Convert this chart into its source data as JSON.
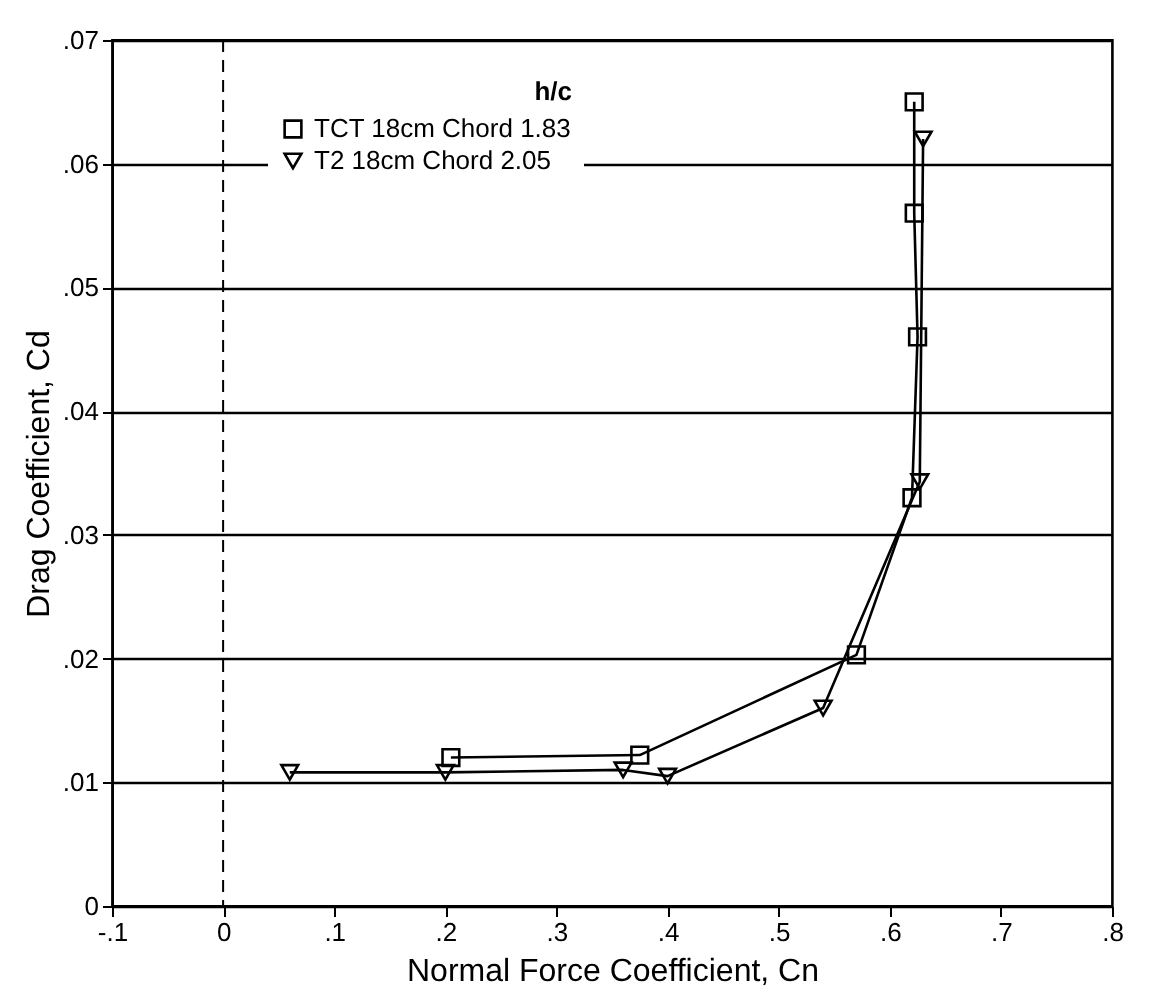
{
  "chart_data": {
    "type": "line",
    "xlabel": "Normal Force Coefficient, Cn",
    "ylabel": "Drag Coefficient, Cd",
    "legend_title": "h/c",
    "series": [
      {
        "name": "TCT 18cm Chord 1.83",
        "color": "#000000",
        "marker": "square",
        "x": [
          0.205,
          0.375,
          0.57,
          0.62,
          0.625,
          0.622,
          0.622
        ],
        "values": [
          0.012,
          0.0122,
          0.0203,
          0.033,
          0.046,
          0.056,
          0.065
        ]
      },
      {
        "name": "T2 18cm Chord 2.05",
        "color": "#000000",
        "marker": "triangle",
        "x": [
          0.06,
          0.2,
          0.36,
          0.4,
          0.54,
          0.627,
          0.63
        ],
        "values": [
          0.0108,
          0.0108,
          0.011,
          0.0105,
          0.016,
          0.0343,
          0.062
        ]
      }
    ],
    "xlim": [
      -0.1,
      0.8
    ],
    "xticks": [
      {
        "value": -0.1,
        "label": "-.1"
      },
      0,
      {
        "value": 0.1,
        "label": ".1"
      },
      {
        "value": 0.2,
        "label": ".2"
      },
      {
        "value": 0.3,
        "label": ".3"
      },
      {
        "value": 0.4,
        "label": ".4"
      },
      {
        "value": 0.5,
        "label": ".5"
      },
      {
        "value": 0.6,
        "label": ".6"
      },
      {
        "value": 0.7,
        "label": ".7"
      },
      {
        "value": 0.8,
        "label": ".8"
      }
    ],
    "ylim": [
      0,
      0.07
    ],
    "yticks": [
      0,
      {
        "value": 0.01,
        "label": ".01"
      },
      {
        "value": 0.02,
        "label": ".02"
      },
      {
        "value": 0.03,
        "label": ".03"
      },
      {
        "value": 0.04,
        "label": ".04"
      },
      {
        "value": 0.05,
        "label": ".05"
      },
      {
        "value": 0.06,
        "label": ".06"
      },
      {
        "value": 0.07,
        "label": ".07"
      }
    ],
    "ref_lines": [
      {
        "axis": "x",
        "value": 0,
        "line_style": "dashed"
      }
    ],
    "grid": "y",
    "legend": "top left",
    "line_style": "solid"
  }
}
